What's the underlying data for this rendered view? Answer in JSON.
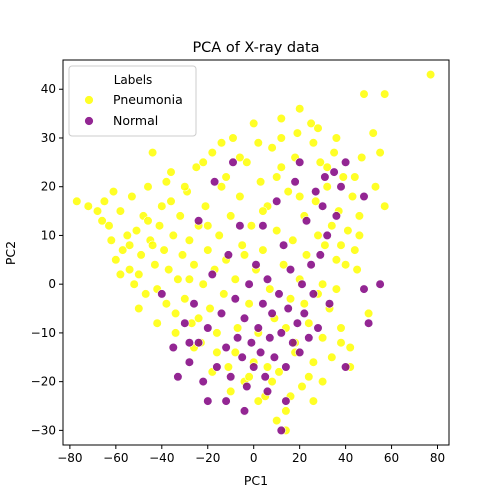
{
  "chart_data": {
    "type": "scatter",
    "title": "PCA of X-ray data",
    "xlabel": "PC1",
    "ylabel": "PC2",
    "xlim": [
      -83,
      85
    ],
    "ylim": [
      -33,
      46
    ],
    "xticks": [
      -80,
      -60,
      -40,
      -20,
      0,
      20,
      40,
      60,
      80
    ],
    "yticks": [
      -30,
      -20,
      -10,
      0,
      10,
      20,
      30,
      40
    ],
    "grid": false,
    "legend": {
      "title": "Labels",
      "placement": "top-left"
    },
    "series": [
      {
        "name": "Pneumonia",
        "color": "#ffff00",
        "points": [
          [
            -77,
            17
          ],
          [
            -72,
            16
          ],
          [
            -68,
            15
          ],
          [
            -66,
            13
          ],
          [
            -65,
            17
          ],
          [
            -63,
            12
          ],
          [
            -62,
            9
          ],
          [
            -60,
            5
          ],
          [
            -58,
            15
          ],
          [
            -57,
            7
          ],
          [
            -55,
            10
          ],
          [
            -54,
            3
          ],
          [
            -53,
            18
          ],
          [
            -51,
            11
          ],
          [
            -50,
            2
          ],
          [
            -49,
            6
          ],
          [
            -48,
            14
          ],
          [
            -47,
            -2
          ],
          [
            -46,
            20
          ],
          [
            -45,
            9
          ],
          [
            -44,
            27
          ],
          [
            -43,
            4
          ],
          [
            -42,
            -1
          ],
          [
            -41,
            12
          ],
          [
            -40,
            16
          ],
          [
            -39,
            7
          ],
          [
            -38,
            -4
          ],
          [
            -37,
            3
          ],
          [
            -36,
            23
          ],
          [
            -35,
            10
          ],
          [
            -34,
            -6
          ],
          [
            -33,
            1
          ],
          [
            -32,
            14
          ],
          [
            -31,
            6
          ],
          [
            -30,
            -3
          ],
          [
            -29,
            19
          ],
          [
            -28,
            9
          ],
          [
            -27,
            -8
          ],
          [
            -26,
            4
          ],
          [
            -25,
            24
          ],
          [
            -24,
            12
          ],
          [
            -23,
            -12
          ],
          [
            -22,
            0
          ],
          [
            -21,
            16
          ],
          [
            -20,
            7
          ],
          [
            -19,
            -5
          ],
          [
            -18,
            27
          ],
          [
            -17,
            3
          ],
          [
            -16,
            -14
          ],
          [
            -15,
            10
          ],
          [
            -14,
            20
          ],
          [
            -13,
            -2
          ],
          [
            -12,
            5
          ],
          [
            -11,
            -17
          ],
          [
            -10,
            14
          ],
          [
            -9,
            30
          ],
          [
            -8,
            1
          ],
          [
            -7,
            -9
          ],
          [
            -6,
            18
          ],
          [
            -5,
            8
          ],
          [
            -4,
            -20
          ],
          [
            -3,
            25
          ],
          [
            -2,
            -4
          ],
          [
            -1,
            12
          ],
          [
            0,
            33
          ],
          [
            1,
            3
          ],
          [
            2,
            -10
          ],
          [
            3,
            21
          ],
          [
            4,
            7
          ],
          [
            5,
            -23
          ],
          [
            6,
            16
          ],
          [
            7,
            -1
          ],
          [
            8,
            28
          ],
          [
            9,
            -7
          ],
          [
            10,
            11
          ],
          [
            11,
            -18
          ],
          [
            12,
            34
          ],
          [
            13,
            4
          ],
          [
            14,
            -26
          ],
          [
            15,
            19
          ],
          [
            16,
            -3
          ],
          [
            17,
            9
          ],
          [
            18,
            -14
          ],
          [
            19,
            31
          ],
          [
            20,
            1
          ],
          [
            21,
            -21
          ],
          [
            22,
            14
          ],
          [
            23,
            6
          ],
          [
            24,
            -8
          ],
          [
            25,
            33
          ],
          [
            26,
            -16
          ],
          [
            27,
            17
          ],
          [
            28,
            -2
          ],
          [
            29,
            25
          ],
          [
            30,
            -11
          ],
          [
            31,
            8
          ],
          [
            32,
            20
          ],
          [
            33,
            -5
          ],
          [
            34,
            12
          ],
          [
            35,
            27
          ],
          [
            36,
            -1
          ],
          [
            37,
            15
          ],
          [
            38,
            -9
          ],
          [
            39,
            22
          ],
          [
            40,
            4
          ],
          [
            41,
            11
          ],
          [
            42,
            -13
          ],
          [
            43,
            18
          ],
          [
            44,
            7
          ],
          [
            45,
            3
          ],
          [
            46,
            14
          ],
          [
            47,
            26
          ],
          [
            48,
            39
          ],
          [
            50,
            -6
          ],
          [
            52,
            31
          ],
          [
            53,
            20
          ],
          [
            55,
            27
          ],
          [
            57,
            39
          ],
          [
            57,
            16
          ],
          [
            77,
            43
          ],
          [
            -61,
            19
          ],
          [
            -52,
            0
          ],
          [
            -44,
            8
          ],
          [
            -36,
            17
          ],
          [
            -28,
            1
          ],
          [
            -20,
            12
          ],
          [
            -12,
            22
          ],
          [
            -4,
            6
          ],
          [
            4,
            15
          ],
          [
            12,
            24
          ],
          [
            20,
            18
          ],
          [
            28,
            10
          ],
          [
            36,
            5
          ],
          [
            -8,
            -14
          ],
          [
            0,
            -16
          ],
          [
            8,
            -20
          ],
          [
            16,
            -23
          ],
          [
            24,
            -19
          ],
          [
            -16,
            -10
          ],
          [
            -24,
            -7
          ],
          [
            10,
            -28
          ],
          [
            14,
            -30
          ],
          [
            2,
            -24
          ],
          [
            18,
            -12
          ],
          [
            26,
            -24
          ],
          [
            30,
            -20
          ],
          [
            34,
            -15
          ],
          [
            38,
            -12
          ],
          [
            42,
            -17
          ],
          [
            -30,
            20
          ],
          [
            -22,
            25
          ],
          [
            -14,
            29
          ],
          [
            -6,
            26
          ],
          [
            2,
            29
          ],
          [
            10,
            22
          ],
          [
            18,
            26
          ],
          [
            26,
            29
          ],
          [
            32,
            24
          ],
          [
            -38,
            21
          ],
          [
            -46,
            13
          ],
          [
            -54,
            8
          ],
          [
            -58,
            2
          ],
          [
            -50,
            -5
          ],
          [
            -42,
            -8
          ],
          [
            -34,
            -10
          ],
          [
            -26,
            -13
          ],
          [
            -18,
            -18
          ],
          [
            -10,
            -22
          ],
          [
            -2,
            -19
          ],
          [
            6,
            -17
          ],
          [
            14,
            -9
          ],
          [
            22,
            -4
          ],
          [
            30,
            0
          ],
          [
            38,
            8
          ],
          [
            46,
            10
          ],
          [
            44,
            22
          ],
          [
            36,
            30
          ],
          [
            28,
            32
          ],
          [
            20,
            36
          ],
          [
            12,
            30
          ]
        ]
      },
      {
        "name": "Normal",
        "color": "#800080",
        "points": [
          [
            -40,
            -2
          ],
          [
            -35,
            -13
          ],
          [
            -33,
            -19
          ],
          [
            -30,
            -8
          ],
          [
            -28,
            -16
          ],
          [
            -26,
            -4
          ],
          [
            -24,
            -12
          ],
          [
            -22,
            -20
          ],
          [
            -20,
            -9
          ],
          [
            -18,
            2
          ],
          [
            -16,
            -17
          ],
          [
            -14,
            -6
          ],
          [
            -12,
            -13
          ],
          [
            -11,
            6
          ],
          [
            -10,
            -19
          ],
          [
            -8,
            -3
          ],
          [
            -7,
            -11
          ],
          [
            -6,
            12
          ],
          [
            -5,
            -15
          ],
          [
            -4,
            -7
          ],
          [
            -3,
            -21
          ],
          [
            -2,
            0
          ],
          [
            -1,
            -12
          ],
          [
            0,
            -17
          ],
          [
            1,
            4
          ],
          [
            2,
            -9
          ],
          [
            3,
            -14
          ],
          [
            4,
            -4
          ],
          [
            5,
            -19
          ],
          [
            6,
            1
          ],
          [
            7,
            -11
          ],
          [
            8,
            -6
          ],
          [
            9,
            -15
          ],
          [
            10,
            17
          ],
          [
            11,
            -2
          ],
          [
            12,
            -10
          ],
          [
            13,
            8
          ],
          [
            14,
            -17
          ],
          [
            15,
            -5
          ],
          [
            16,
            3
          ],
          [
            17,
            -12
          ],
          [
            18,
            21
          ],
          [
            19,
            -8
          ],
          [
            20,
            -14
          ],
          [
            21,
            0
          ],
          [
            22,
            -6
          ],
          [
            23,
            13
          ],
          [
            24,
            -11
          ],
          [
            25,
            4
          ],
          [
            26,
            -2
          ],
          [
            27,
            19
          ],
          [
            28,
            -9
          ],
          [
            29,
            6
          ],
          [
            30,
            16
          ],
          [
            31,
            22
          ],
          [
            32,
            10
          ],
          [
            33,
            -4
          ],
          [
            35,
            23
          ],
          [
            38,
            20
          ],
          [
            40,
            25
          ],
          [
            48,
            18
          ],
          [
            48,
            -1
          ],
          [
            50,
            -8
          ],
          [
            55,
            0
          ],
          [
            40,
            -17
          ],
          [
            12,
            -30
          ],
          [
            -24,
            13
          ],
          [
            -17,
            21
          ],
          [
            -9,
            25
          ],
          [
            4,
            12
          ],
          [
            20,
            25
          ],
          [
            36,
            14
          ],
          [
            -12,
            -24
          ],
          [
            -4,
            -26
          ],
          [
            6,
            -22
          ],
          [
            14,
            -24
          ],
          [
            -20,
            -24
          ],
          [
            -28,
            -12
          ]
        ]
      }
    ]
  }
}
